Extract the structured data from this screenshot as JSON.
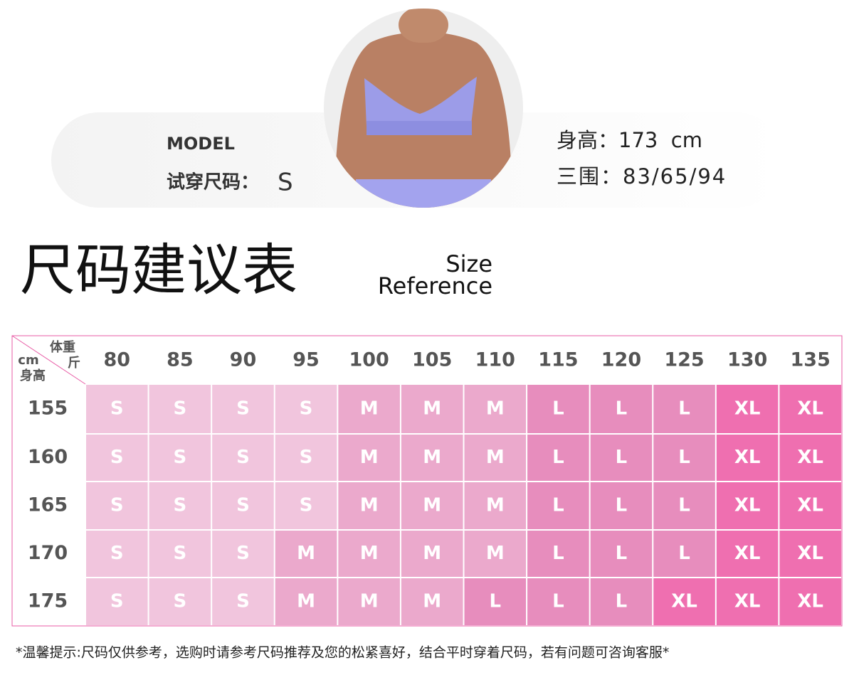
{
  "model": {
    "label": "MODEL",
    "size_label": "试穿尺码：",
    "size": "S",
    "height": "身高：173  cm",
    "measurements": "三围：83/65/94"
  },
  "heading": {
    "title": "尺码建议表",
    "subtitle_line1": "Size",
    "subtitle_line2": "Reference"
  },
  "table": {
    "corner_weight": "体重",
    "corner_weight_unit": "斤",
    "corner_height_unit": "cm",
    "corner_height": "身高",
    "columns": [
      80,
      85,
      90,
      95,
      100,
      105,
      110,
      115,
      120,
      125,
      130,
      135
    ],
    "rows": [
      {
        "height": 155,
        "sizes": [
          "S",
          "S",
          "S",
          "S",
          "M",
          "M",
          "M",
          "L",
          "L",
          "L",
          "XL",
          "XL"
        ]
      },
      {
        "height": 160,
        "sizes": [
          "S",
          "S",
          "S",
          "S",
          "M",
          "M",
          "M",
          "L",
          "L",
          "L",
          "XL",
          "XL"
        ]
      },
      {
        "height": 165,
        "sizes": [
          "S",
          "S",
          "S",
          "S",
          "M",
          "M",
          "M",
          "L",
          "L",
          "L",
          "XL",
          "XL"
        ]
      },
      {
        "height": 170,
        "sizes": [
          "S",
          "S",
          "S",
          "M",
          "M",
          "M",
          "M",
          "L",
          "L",
          "L",
          "XL",
          "XL"
        ]
      },
      {
        "height": 175,
        "sizes": [
          "S",
          "S",
          "S",
          "M",
          "M",
          "M",
          "L",
          "L",
          "L",
          "XL",
          "XL",
          "XL"
        ]
      }
    ]
  },
  "footnote": "*温馨提示:尺码仅供参考，选购时请参考尺码推荐及您的松紧喜好，结合平时穿着尺码，若有问题可咨询客服*"
}
